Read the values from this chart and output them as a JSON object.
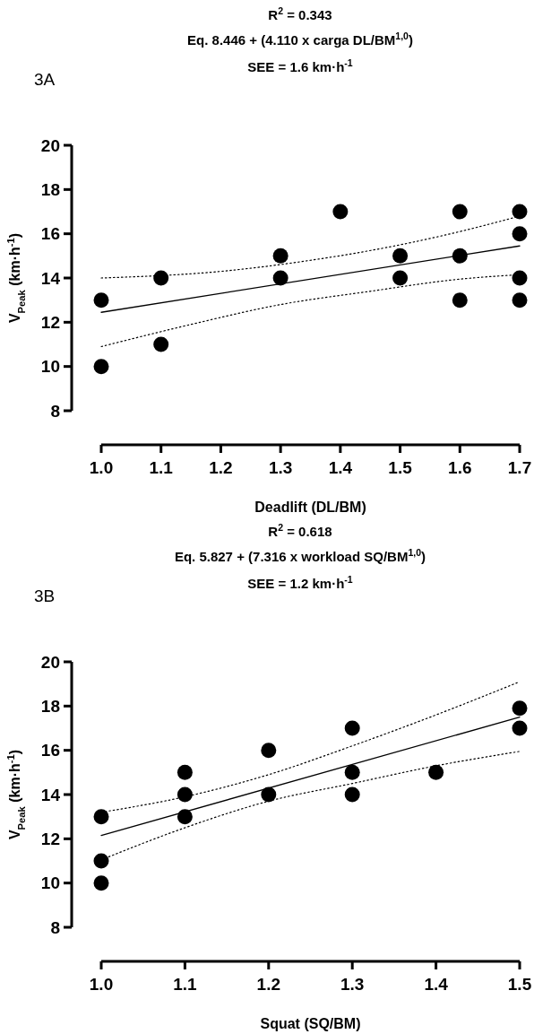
{
  "chart_data": [
    {
      "type": "scatter",
      "title": "R$^{2}$ = 0.343",
      "subtitle": "Eq. 8.446 + (4.110 x carga DL/BM$^{1,0}$)",
      "annotations": [
        "SEE = 1.6 km·h$^{-1}$",
        "3A"
      ],
      "xlabel": "Deadlift (DL/BM)",
      "ylabel": "V$_{Peak}$ (km·h$^{-1}$)",
      "xlim": [
        1.0,
        1.7
      ],
      "xticks": [
        {
          "value": 1.0,
          "label": "1.0"
        },
        1.1,
        1.2,
        1.3,
        1.4,
        1.5,
        1.6,
        1.7
      ],
      "ylim": [
        8,
        20
      ],
      "yticks": [
        8,
        10,
        12,
        14,
        16,
        18,
        20
      ],
      "grid": false,
      "series": [
        {
          "marker": "circle",
          "color": "#000000",
          "x": [
            1.0,
            1.0,
            1.1,
            1.1,
            1.3,
            1.3,
            1.4,
            1.5,
            1.5,
            1.6,
            1.6,
            1.6,
            1.7,
            1.7,
            1.7,
            1.7
          ],
          "values": [
            13,
            10,
            14,
            11,
            15,
            14,
            17,
            15,
            14,
            17,
            15,
            13,
            17,
            16,
            14,
            13
          ]
        },
        {
          "type": "line",
          "marker": "none",
          "line_style": "solid",
          "color": "#000000",
          "x": [
            1.0,
            1.7
          ],
          "values": [
            12.45,
            15.45
          ]
        },
        {
          "type": "line",
          "marker": "none",
          "line_style": "dotted",
          "color": "#000000",
          "x": [
            1.0,
            1.2,
            1.35,
            1.5,
            1.6,
            1.7
          ],
          "values": [
            14.0,
            14.3,
            14.8,
            15.5,
            16.1,
            16.8
          ]
        },
        {
          "type": "line",
          "marker": "none",
          "line_style": "dotted",
          "color": "#000000",
          "x": [
            1.0,
            1.15,
            1.3,
            1.45,
            1.6,
            1.7
          ],
          "values": [
            10.9,
            11.9,
            12.8,
            13.4,
            13.95,
            14.15
          ]
        }
      ]
    },
    {
      "type": "scatter",
      "title": "R$^{2}$ = 0.618",
      "subtitle": "Eq. 5.827 + (7.316 x workload SQ/BM$^{1,0}$)",
      "annotations": [
        "SEE = 1.2 km·h$^{-1}$",
        "3B"
      ],
      "xlabel": "Squat (SQ/BM)",
      "ylabel": "V$_{Peak}$ (km·h$^{-1}$)",
      "xlim": [
        1.0,
        1.5
      ],
      "xticks": [
        {
          "value": 1.0,
          "label": "1.0"
        },
        1.1,
        1.2,
        1.3,
        1.4,
        1.5
      ],
      "ylim": [
        8,
        20
      ],
      "yticks": [
        8,
        10,
        12,
        14,
        16,
        18,
        20
      ],
      "grid": false,
      "series": [
        {
          "marker": "circle",
          "color": "#000000",
          "x": [
            1.0,
            1.0,
            1.0,
            1.1,
            1.1,
            1.1,
            1.2,
            1.2,
            1.3,
            1.3,
            1.3,
            1.4,
            1.5,
            1.5
          ],
          "values": [
            13,
            11,
            10,
            15,
            14,
            13,
            16,
            14,
            17,
            15,
            14,
            15,
            17.9,
            17
          ]
        },
        {
          "type": "line",
          "marker": "none",
          "line_style": "solid",
          "color": "#000000",
          "x": [
            1.0,
            1.5
          ],
          "values": [
            12.15,
            17.5
          ]
        },
        {
          "type": "line",
          "marker": "none",
          "line_style": "dotted",
          "color": "#000000",
          "x": [
            1.0,
            1.1,
            1.2,
            1.3,
            1.4,
            1.5
          ],
          "values": [
            13.2,
            13.9,
            14.9,
            16.2,
            17.6,
            19.1
          ]
        },
        {
          "type": "line",
          "marker": "none",
          "line_style": "dotted",
          "color": "#000000",
          "x": [
            1.0,
            1.1,
            1.2,
            1.3,
            1.4,
            1.5
          ],
          "values": [
            11.05,
            12.5,
            13.7,
            14.5,
            15.3,
            15.95
          ]
        }
      ]
    }
  ]
}
